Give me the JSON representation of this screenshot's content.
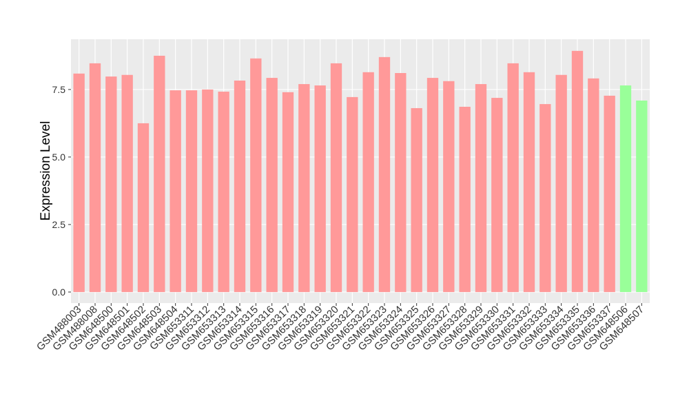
{
  "chart_data": {
    "type": "bar",
    "y_label": "Expression Level",
    "categories": [
      "GSM488003",
      "GSM488008",
      "GSM648500",
      "GSM648501",
      "GSM648502",
      "GSM648503",
      "GSM648504",
      "GSM653311",
      "GSM653312",
      "GSM653313",
      "GSM653314",
      "GSM653315",
      "GSM653316",
      "GSM653317",
      "GSM653318",
      "GSM653319",
      "GSM653320",
      "GSM653321",
      "GSM653322",
      "GSM653323",
      "GSM653324",
      "GSM653325",
      "GSM653326",
      "GSM653327",
      "GSM653328",
      "GSM653329",
      "GSM653330",
      "GSM653331",
      "GSM653332",
      "GSM653333",
      "GSM653334",
      "GSM653335",
      "GSM653336",
      "GSM653337",
      "GSM648506",
      "GSM648507"
    ],
    "values": [
      8.09,
      8.47,
      7.98,
      8.04,
      6.25,
      8.75,
      7.47,
      7.47,
      7.5,
      7.42,
      7.83,
      8.65,
      7.93,
      7.4,
      7.7,
      7.65,
      8.47,
      7.22,
      8.14,
      8.7,
      8.11,
      6.81,
      7.93,
      7.81,
      6.86,
      7.7,
      7.19,
      8.47,
      8.14,
      6.96,
      8.04,
      8.93,
      7.91,
      7.27,
      7.65,
      7.09
    ],
    "colors": [
      "#ff9999",
      "#ff9999",
      "#ff9999",
      "#ff9999",
      "#ff9999",
      "#ff9999",
      "#ff9999",
      "#ff9999",
      "#ff9999",
      "#ff9999",
      "#ff9999",
      "#ff9999",
      "#ff9999",
      "#ff9999",
      "#ff9999",
      "#ff9999",
      "#ff9999",
      "#ff9999",
      "#ff9999",
      "#ff9999",
      "#ff9999",
      "#ff9999",
      "#ff9999",
      "#ff9999",
      "#ff9999",
      "#ff9999",
      "#ff9999",
      "#ff9999",
      "#ff9999",
      "#ff9999",
      "#ff9999",
      "#ff9999",
      "#ff9999",
      "#ff9999",
      "#99ff99",
      "#99ff99"
    ],
    "ylim": [
      -0.41,
      9.36
    ],
    "yticks": [
      {
        "value": 0,
        "label": "0.0"
      },
      2.5,
      {
        "value": 5,
        "label": "5.0"
      },
      7.5
    ],
    "grid": true
  }
}
